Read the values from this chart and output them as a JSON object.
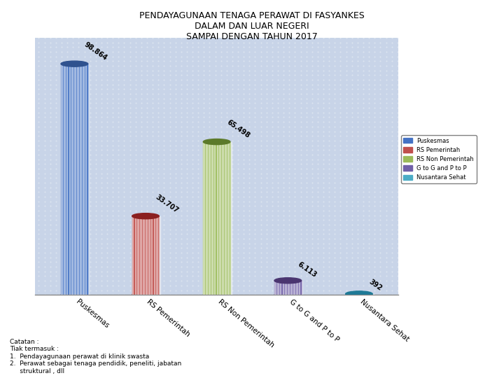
{
  "title": "PENDAYAGUNAAN TENAGA PERAWAT DI FASYANKES\nDALAM DAN LUAR NEGERI\nSAMPAI DENGAN TAHUN 2017",
  "categories": [
    "Puskesmas",
    "RS Pemerintah",
    "RS Non Pemerintah",
    "G to G and P to P",
    "Nusantara Sehat"
  ],
  "values": [
    98864,
    33707,
    65498,
    6113,
    392
  ],
  "bar_colors": [
    "#4472C4",
    "#C0504D",
    "#9BBB59",
    "#7060A8",
    "#4BACC6"
  ],
  "bar_colors_dark": [
    "#2F528F",
    "#8B2020",
    "#5C7A2A",
    "#4A3570",
    "#1F7A96"
  ],
  "bar_colors_light": [
    "#6699DD",
    "#E07070",
    "#BBDD77",
    "#9988CC",
    "#77CCDD"
  ],
  "legend_labels": [
    "Puskesmas",
    "RS Pemerintah",
    "RS Non Pemerintah",
    "G to G and P to P",
    "Nusantara Sehat"
  ],
  "bg_color": "#C8D4E8",
  "ylim": [
    0,
    110000
  ],
  "footnote": "Catatan :\nTiak termasuk :\n1.  Pendayagunaan perawat di klinik swasta\n2.  Perawat sebagai tenaga pendidik, peneliti, jabatan\n     struktural , dll"
}
